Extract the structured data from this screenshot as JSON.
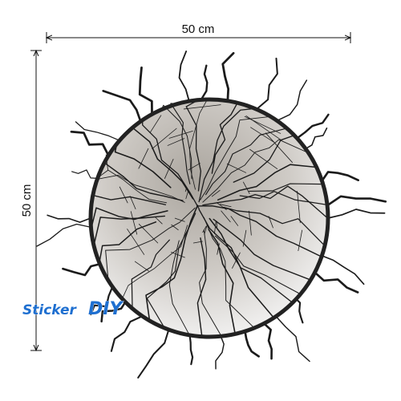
{
  "dimensions": {
    "width_label": "50 cm",
    "height_label": "50 cm"
  },
  "logo": {
    "text": "Sticker",
    "accent": "DIY"
  }
}
